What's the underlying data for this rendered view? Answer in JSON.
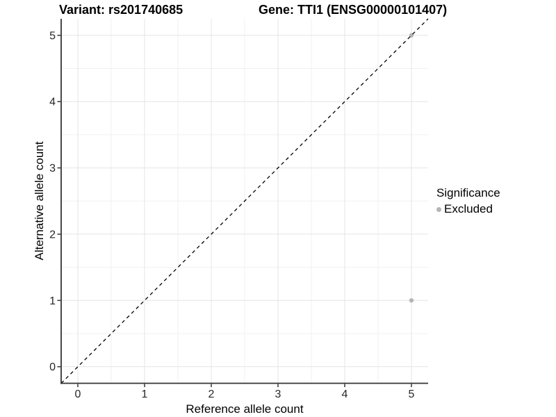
{
  "header": {
    "variant_title": "Variant: rs201740685",
    "gene_title": "Gene: TTI1 (ENSG00000101407)"
  },
  "legend": {
    "title": "Significance",
    "items": [
      {
        "label": "Excluded",
        "color": "#b5b5b5"
      }
    ]
  },
  "chart_data": {
    "type": "scatter",
    "title": "Variant: rs201740685 | Gene: TTI1 (ENSG00000101407)",
    "xlabel": "Reference allele count",
    "ylabel": "Alternative allele count",
    "xlim": [
      -0.25,
      5.25
    ],
    "ylim": [
      -0.25,
      5.25
    ],
    "x_ticks": [
      0,
      1,
      2,
      3,
      4,
      5
    ],
    "y_ticks": [
      0,
      1,
      2,
      3,
      4,
      5
    ],
    "x_minor_ticks": [
      0.5,
      1.5,
      2.5,
      3.5,
      4.5
    ],
    "y_minor_ticks": [
      0.5,
      1.5,
      2.5,
      3.5,
      4.5
    ],
    "grid": true,
    "legend_position": "right",
    "series": [
      {
        "name": "Excluded",
        "color": "#b5b5b5",
        "points": [
          {
            "x": 5,
            "y": 1
          },
          {
            "x": 5,
            "y": 5
          }
        ]
      }
    ],
    "reference_line": {
      "kind": "identity",
      "slope": 1,
      "intercept": 0,
      "style": "dashed",
      "color": "#000000"
    }
  },
  "colors": {
    "background": "#ffffff",
    "axis_line": "#333333",
    "grid_major": "#e4e4e4",
    "grid_minor": "#f0f0f0",
    "tick_text": "#262626",
    "point": "#b5b5b5",
    "dashed_line": "#000000"
  }
}
